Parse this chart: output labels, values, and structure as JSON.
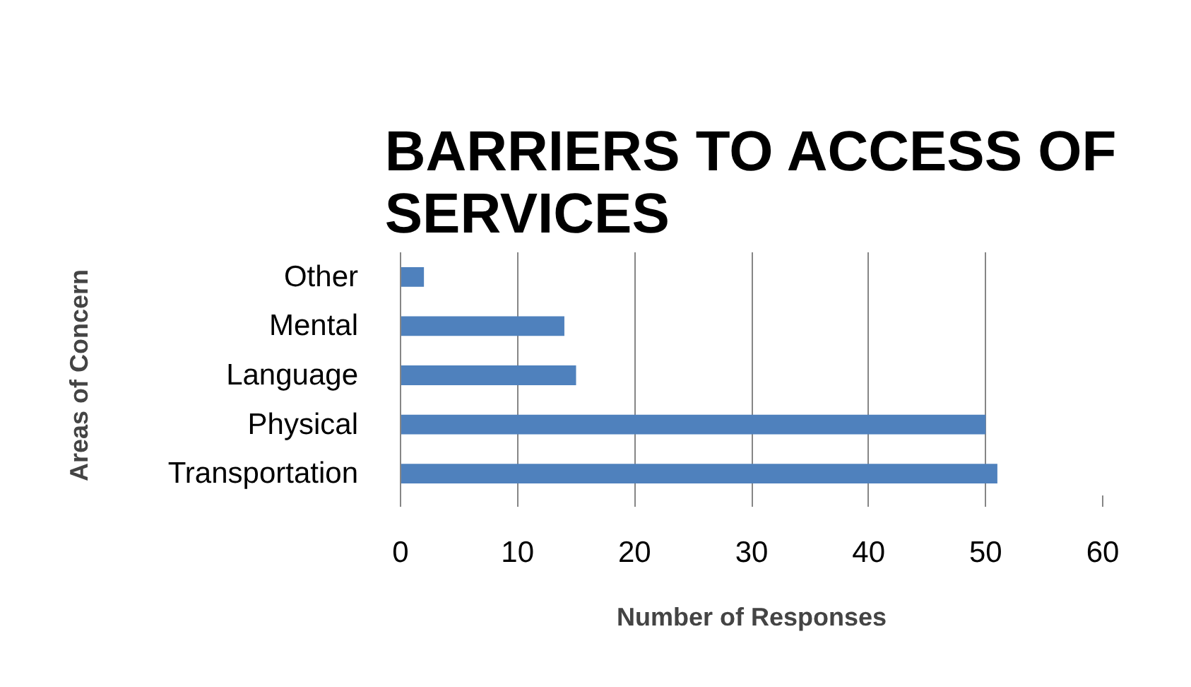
{
  "chart_data": {
    "type": "bar",
    "orientation": "horizontal",
    "title": "BARRIERS TO ACCESS OF SERVICES",
    "xlabel": "Number of Responses",
    "ylabel": "Areas of Concern",
    "categories": [
      "Other",
      "Mental",
      "Language",
      "Physical",
      "Transportation"
    ],
    "values": [
      2,
      14,
      15,
      50,
      51
    ],
    "color": "#4f81bd",
    "xlim": [
      0,
      60
    ],
    "xticks": [
      0,
      10,
      20,
      30,
      40,
      50,
      60
    ],
    "grid": "x"
  }
}
